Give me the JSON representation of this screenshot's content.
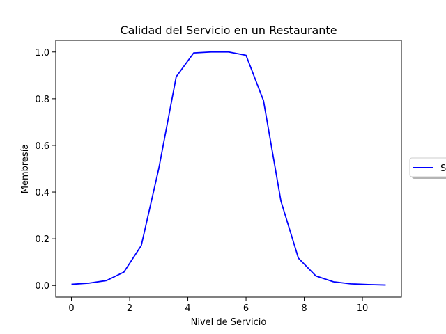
{
  "chart_data": {
    "type": "line",
    "title": "Calidad del Servicio en un Restaurante",
    "xlabel": "Nivel de Servicio",
    "ylabel": "Membresía",
    "xlim": [
      -0.54,
      11.34
    ],
    "ylim": [
      -0.05,
      1.05
    ],
    "xticks": [
      0,
      2,
      4,
      6,
      8,
      10
    ],
    "xtick_labels": [
      "0",
      "2",
      "4",
      "6",
      "8",
      "10"
    ],
    "yticks": [
      0.0,
      0.2,
      0.4,
      0.6,
      0.8,
      1.0
    ],
    "ytick_labels": [
      "0.0",
      "0.2",
      "0.4",
      "0.6",
      "0.8",
      "1.0"
    ],
    "series": [
      {
        "name": "S",
        "color": "#0000ff",
        "x": [
          0,
          0.6,
          1.2,
          1.8,
          2.4,
          3.0,
          3.6,
          4.2,
          4.8,
          5.4,
          6.0,
          6.6,
          7.2,
          7.8,
          8.4,
          9.0,
          9.6,
          10.2,
          10.8
        ],
        "y": [
          0.005,
          0.01,
          0.021,
          0.057,
          0.171,
          0.5,
          0.894,
          0.996,
          1.0,
          1.0,
          0.986,
          0.792,
          0.361,
          0.117,
          0.041,
          0.016,
          0.007,
          0.004,
          0.002
        ]
      }
    ],
    "legend": {
      "placement": "right-outside",
      "label": "S"
    }
  }
}
